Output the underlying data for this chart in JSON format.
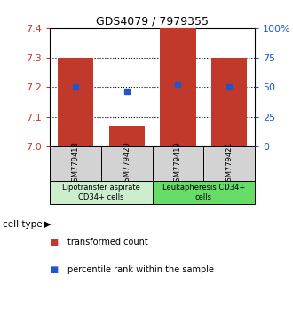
{
  "title": "GDS4079 / 7979355",
  "samples": [
    "GSM779418",
    "GSM779420",
    "GSM779419",
    "GSM779421"
  ],
  "bar_values": [
    7.3,
    7.07,
    7.4,
    7.3
  ],
  "percentile_values": [
    7.2,
    7.185,
    7.21,
    7.2
  ],
  "ymin": 7.0,
  "ymax": 7.4,
  "yticks_left": [
    7.0,
    7.1,
    7.2,
    7.3,
    7.4
  ],
  "yticks_right_vals": [
    7.0,
    7.1,
    7.2,
    7.3,
    7.4
  ],
  "yticks_right_labels": [
    "0",
    "25",
    "50",
    "75",
    "100%"
  ],
  "bar_color": "#c0392b",
  "marker_color": "#2255cc",
  "group1_label": "Lipotransfer aspirate\nCD34+ cells",
  "group2_label": "Leukapheresis CD34+\ncells",
  "group1_bg": "#cceecc",
  "group2_bg": "#66dd66",
  "sample_bg": "#d3d3d3",
  "cell_type_label": "cell type",
  "legend_bar_label": "transformed count",
  "legend_marker_label": "percentile rank within the sample",
  "bar_width": 0.7,
  "gridline_vals": [
    7.1,
    7.2,
    7.3
  ],
  "title_fontsize": 9,
  "tick_fontsize": 8,
  "sample_fontsize": 6,
  "group_fontsize": 6,
  "legend_fontsize": 7
}
